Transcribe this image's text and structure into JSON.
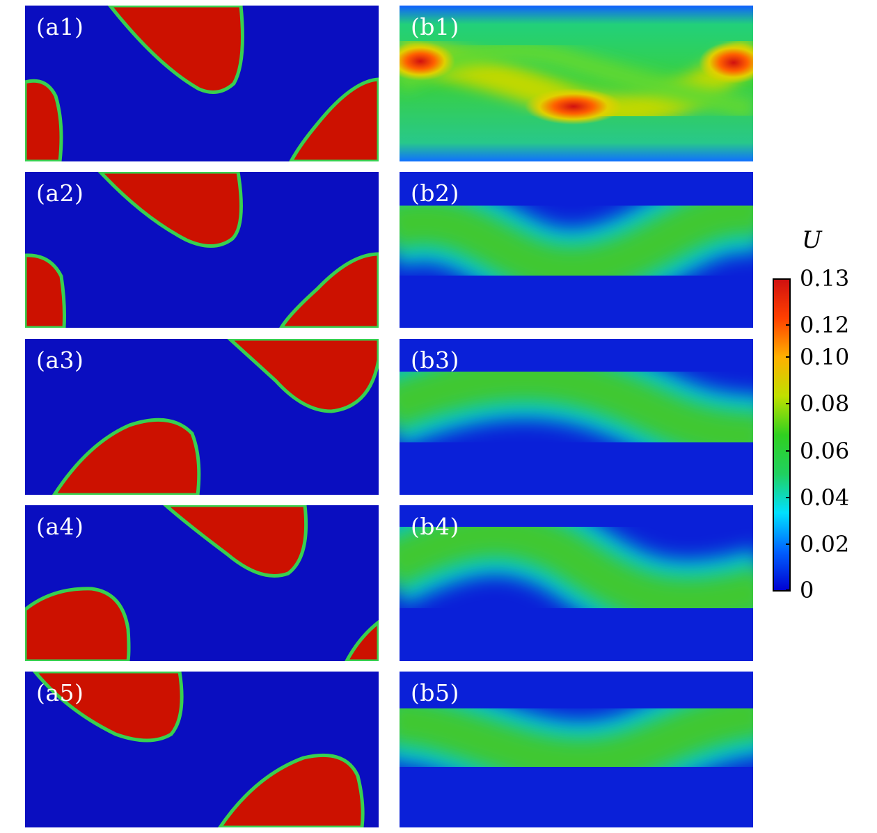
{
  "panels": [
    {
      "id": "a1",
      "label": "(a1)",
      "field": "phase"
    },
    {
      "id": "a2",
      "label": "(a2)",
      "field": "phase"
    },
    {
      "id": "a3",
      "label": "(a3)",
      "field": "phase"
    },
    {
      "id": "a4",
      "label": "(a4)",
      "field": "phase"
    },
    {
      "id": "a5",
      "label": "(a5)",
      "field": "phase"
    },
    {
      "id": "b1",
      "label": "(b1)",
      "field": "velocity"
    },
    {
      "id": "b2",
      "label": "(b2)",
      "field": "velocity"
    },
    {
      "id": "b3",
      "label": "(b3)",
      "field": "velocity"
    },
    {
      "id": "b4",
      "label": "(b4)",
      "field": "velocity"
    },
    {
      "id": "b5",
      "label": "(b5)",
      "field": "velocity"
    }
  ],
  "colorbar": {
    "title": "U",
    "ticks": [
      "0.13",
      "0.12",
      "0.10",
      "0.08",
      "0.06",
      "0.04",
      "0.02",
      "0"
    ],
    "colors": [
      "#0000d0",
      "#0060ff",
      "#00e0ff",
      "#20d060",
      "#30d020",
      "#c0e000",
      "#ffb000",
      "#ff4000",
      "#d01010"
    ]
  },
  "colors": {
    "background_blue": "#0a0ec0",
    "drop_red": "#cc1100",
    "interface_green": "#38d050"
  }
}
